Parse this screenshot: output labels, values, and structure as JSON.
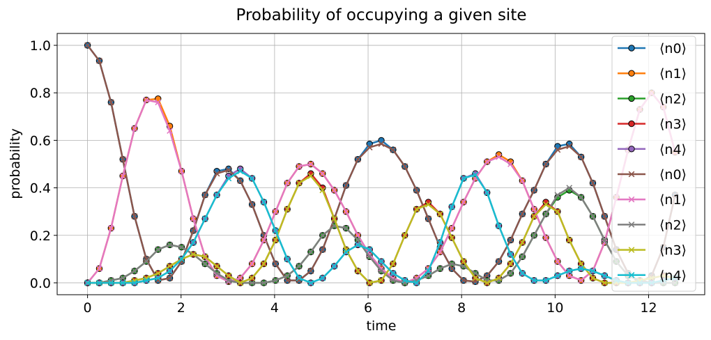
{
  "chart_data": {
    "type": "line",
    "title": "Probability of occupying a given site",
    "xlabel": "time",
    "ylabel": "probability",
    "xlim": [
      -0.65,
      13.2
    ],
    "ylim": [
      -0.05,
      1.05
    ],
    "xticks": [
      0,
      2,
      4,
      6,
      8,
      10,
      12
    ],
    "yticks": [
      0.0,
      0.2,
      0.4,
      0.6,
      0.8,
      1.0
    ],
    "grid": true,
    "legend_position": "top-right",
    "x": [
      0,
      0.251,
      0.503,
      0.754,
      1.005,
      1.257,
      1.508,
      1.759,
      2.011,
      2.262,
      2.513,
      2.765,
      3.016,
      3.267,
      3.519,
      3.77,
      4.021,
      4.273,
      4.524,
      4.775,
      5.027,
      5.278,
      5.529,
      5.781,
      6.032,
      6.283,
      6.535,
      6.786,
      7.037,
      7.289,
      7.54,
      7.791,
      8.042,
      8.294,
      8.545,
      8.796,
      9.048,
      9.299,
      9.55,
      9.802,
      10.053,
      10.304,
      10.556,
      10.807,
      11.058,
      11.31,
      11.561,
      11.812,
      12.064,
      12.315,
      12.566
    ],
    "series": [
      {
        "name": "⟨n0⟩",
        "color": "#1f77b4",
        "marker": "o",
        "values": [
          1.0,
          0.935,
          0.76,
          0.52,
          0.28,
          0.1,
          0.01,
          0.02,
          0.09,
          0.22,
          0.37,
          0.47,
          0.48,
          0.43,
          0.33,
          0.2,
          0.08,
          0.01,
          0.01,
          0.05,
          0.14,
          0.27,
          0.41,
          0.52,
          0.585,
          0.6,
          0.56,
          0.49,
          0.39,
          0.27,
          0.15,
          0.06,
          0.01,
          0.005,
          0.03,
          0.09,
          0.18,
          0.29,
          0.39,
          0.5,
          0.575,
          0.585,
          0.53,
          0.42,
          0.28,
          0.14,
          0.04,
          0.0,
          0.03,
          0.15,
          0.37
        ]
      },
      {
        "name": "⟨n1⟩",
        "color": "#ff7f0e",
        "marker": "o",
        "values": [
          0.0,
          0.06,
          0.23,
          0.45,
          0.65,
          0.77,
          0.775,
          0.66,
          0.47,
          0.27,
          0.11,
          0.03,
          0.005,
          0.02,
          0.08,
          0.18,
          0.3,
          0.42,
          0.49,
          0.5,
          0.46,
          0.39,
          0.3,
          0.2,
          0.12,
          0.06,
          0.02,
          0.0,
          0.02,
          0.06,
          0.13,
          0.23,
          0.34,
          0.44,
          0.51,
          0.54,
          0.51,
          0.43,
          0.31,
          0.19,
          0.09,
          0.03,
          0.01,
          0.05,
          0.17,
          0.36,
          0.56,
          0.73,
          0.8,
          0.74,
          0.55
        ]
      },
      {
        "name": "⟨n2⟩",
        "color": "#2ca02c",
        "marker": "o",
        "values": [
          0.0,
          0.0,
          0.01,
          0.02,
          0.05,
          0.09,
          0.14,
          0.16,
          0.15,
          0.12,
          0.08,
          0.04,
          0.01,
          0.0,
          0.0,
          0.0,
          0.01,
          0.03,
          0.07,
          0.13,
          0.2,
          0.24,
          0.23,
          0.18,
          0.11,
          0.05,
          0.01,
          0.0,
          0.01,
          0.03,
          0.06,
          0.08,
          0.07,
          0.04,
          0.01,
          0.01,
          0.04,
          0.11,
          0.2,
          0.29,
          0.36,
          0.39,
          0.36,
          0.28,
          0.18,
          0.09,
          0.03,
          0.01,
          0.0,
          0.0,
          0.0
        ]
      },
      {
        "name": "⟨n3⟩",
        "color": "#d62728",
        "marker": "o",
        "values": [
          0.0,
          0.0,
          0.0,
          0.0,
          0.01,
          0.02,
          0.04,
          0.07,
          0.1,
          0.12,
          0.11,
          0.07,
          0.03,
          0.0,
          0.02,
          0.08,
          0.18,
          0.31,
          0.42,
          0.46,
          0.4,
          0.27,
          0.14,
          0.05,
          0.0,
          0.01,
          0.08,
          0.2,
          0.31,
          0.34,
          0.29,
          0.19,
          0.09,
          0.02,
          0.0,
          0.02,
          0.08,
          0.17,
          0.28,
          0.34,
          0.3,
          0.18,
          0.08,
          0.02,
          0.0,
          0.0,
          0.0,
          0.01,
          0.02,
          0.03,
          0.02
        ]
      },
      {
        "name": "⟨n4⟩",
        "color": "#9467bd",
        "marker": "o",
        "values": [
          0.0,
          0.0,
          0.0,
          0.0,
          0.0,
          0.01,
          0.02,
          0.05,
          0.1,
          0.17,
          0.27,
          0.37,
          0.45,
          0.48,
          0.44,
          0.34,
          0.22,
          0.1,
          0.02,
          0.0,
          0.02,
          0.07,
          0.13,
          0.16,
          0.14,
          0.09,
          0.04,
          0.01,
          0.0,
          0.05,
          0.17,
          0.32,
          0.44,
          0.46,
          0.38,
          0.24,
          0.12,
          0.04,
          0.01,
          0.01,
          0.03,
          0.05,
          0.06,
          0.05,
          0.03,
          0.01,
          0.0,
          0.0,
          0.0,
          0.01,
          0.02
        ]
      },
      {
        "name": "⟨n0⟩",
        "color": "#8c564b",
        "marker": "x",
        "values": [
          1.0,
          0.935,
          0.76,
          0.52,
          0.28,
          0.1,
          0.01,
          0.02,
          0.09,
          0.22,
          0.37,
          0.46,
          0.475,
          0.43,
          0.33,
          0.2,
          0.08,
          0.01,
          0.01,
          0.05,
          0.14,
          0.27,
          0.41,
          0.52,
          0.57,
          0.585,
          0.56,
          0.49,
          0.39,
          0.27,
          0.15,
          0.06,
          0.01,
          0.005,
          0.03,
          0.09,
          0.18,
          0.29,
          0.39,
          0.5,
          0.56,
          0.575,
          0.53,
          0.42,
          0.28,
          0.14,
          0.04,
          0.0,
          0.03,
          0.15,
          0.37
        ]
      },
      {
        "name": "⟨n1⟩",
        "color": "#e377c2",
        "marker": "x",
        "values": [
          0.0,
          0.06,
          0.23,
          0.45,
          0.65,
          0.77,
          0.76,
          0.64,
          0.47,
          0.27,
          0.11,
          0.03,
          0.005,
          0.02,
          0.08,
          0.18,
          0.3,
          0.42,
          0.49,
          0.5,
          0.46,
          0.39,
          0.3,
          0.2,
          0.12,
          0.06,
          0.02,
          0.0,
          0.02,
          0.06,
          0.13,
          0.23,
          0.34,
          0.44,
          0.51,
          0.53,
          0.5,
          0.43,
          0.31,
          0.19,
          0.09,
          0.03,
          0.01,
          0.05,
          0.17,
          0.36,
          0.56,
          0.73,
          0.8,
          0.74,
          0.55
        ]
      },
      {
        "name": "⟨n2⟩",
        "color": "#7f7f7f",
        "marker": "x",
        "values": [
          0.0,
          0.0,
          0.01,
          0.02,
          0.05,
          0.09,
          0.14,
          0.16,
          0.15,
          0.12,
          0.08,
          0.04,
          0.01,
          0.0,
          0.0,
          0.0,
          0.01,
          0.03,
          0.07,
          0.13,
          0.2,
          0.24,
          0.23,
          0.18,
          0.11,
          0.05,
          0.01,
          0.0,
          0.01,
          0.03,
          0.06,
          0.08,
          0.07,
          0.04,
          0.01,
          0.01,
          0.04,
          0.11,
          0.2,
          0.29,
          0.37,
          0.4,
          0.36,
          0.28,
          0.18,
          0.09,
          0.03,
          0.01,
          0.0,
          0.0,
          0.0
        ]
      },
      {
        "name": "⟨n3⟩",
        "color": "#bcbd22",
        "marker": "x",
        "values": [
          0.0,
          0.0,
          0.0,
          0.0,
          0.01,
          0.02,
          0.04,
          0.07,
          0.1,
          0.12,
          0.11,
          0.07,
          0.03,
          0.0,
          0.02,
          0.08,
          0.18,
          0.31,
          0.42,
          0.45,
          0.39,
          0.27,
          0.14,
          0.05,
          0.0,
          0.01,
          0.08,
          0.2,
          0.31,
          0.33,
          0.29,
          0.19,
          0.09,
          0.02,
          0.0,
          0.02,
          0.08,
          0.17,
          0.28,
          0.33,
          0.3,
          0.18,
          0.08,
          0.02,
          0.0,
          0.0,
          0.0,
          0.01,
          0.02,
          0.03,
          0.02
        ]
      },
      {
        "name": "⟨n4⟩",
        "color": "#17becf",
        "marker": "x",
        "values": [
          0.0,
          0.0,
          0.0,
          0.0,
          0.0,
          0.01,
          0.02,
          0.05,
          0.1,
          0.17,
          0.27,
          0.37,
          0.44,
          0.47,
          0.44,
          0.34,
          0.22,
          0.1,
          0.02,
          0.0,
          0.02,
          0.07,
          0.13,
          0.16,
          0.14,
          0.09,
          0.04,
          0.01,
          0.0,
          0.05,
          0.17,
          0.32,
          0.44,
          0.455,
          0.38,
          0.24,
          0.12,
          0.04,
          0.01,
          0.01,
          0.03,
          0.05,
          0.06,
          0.05,
          0.03,
          0.01,
          0.0,
          0.0,
          0.0,
          0.01,
          0.02
        ]
      }
    ]
  }
}
